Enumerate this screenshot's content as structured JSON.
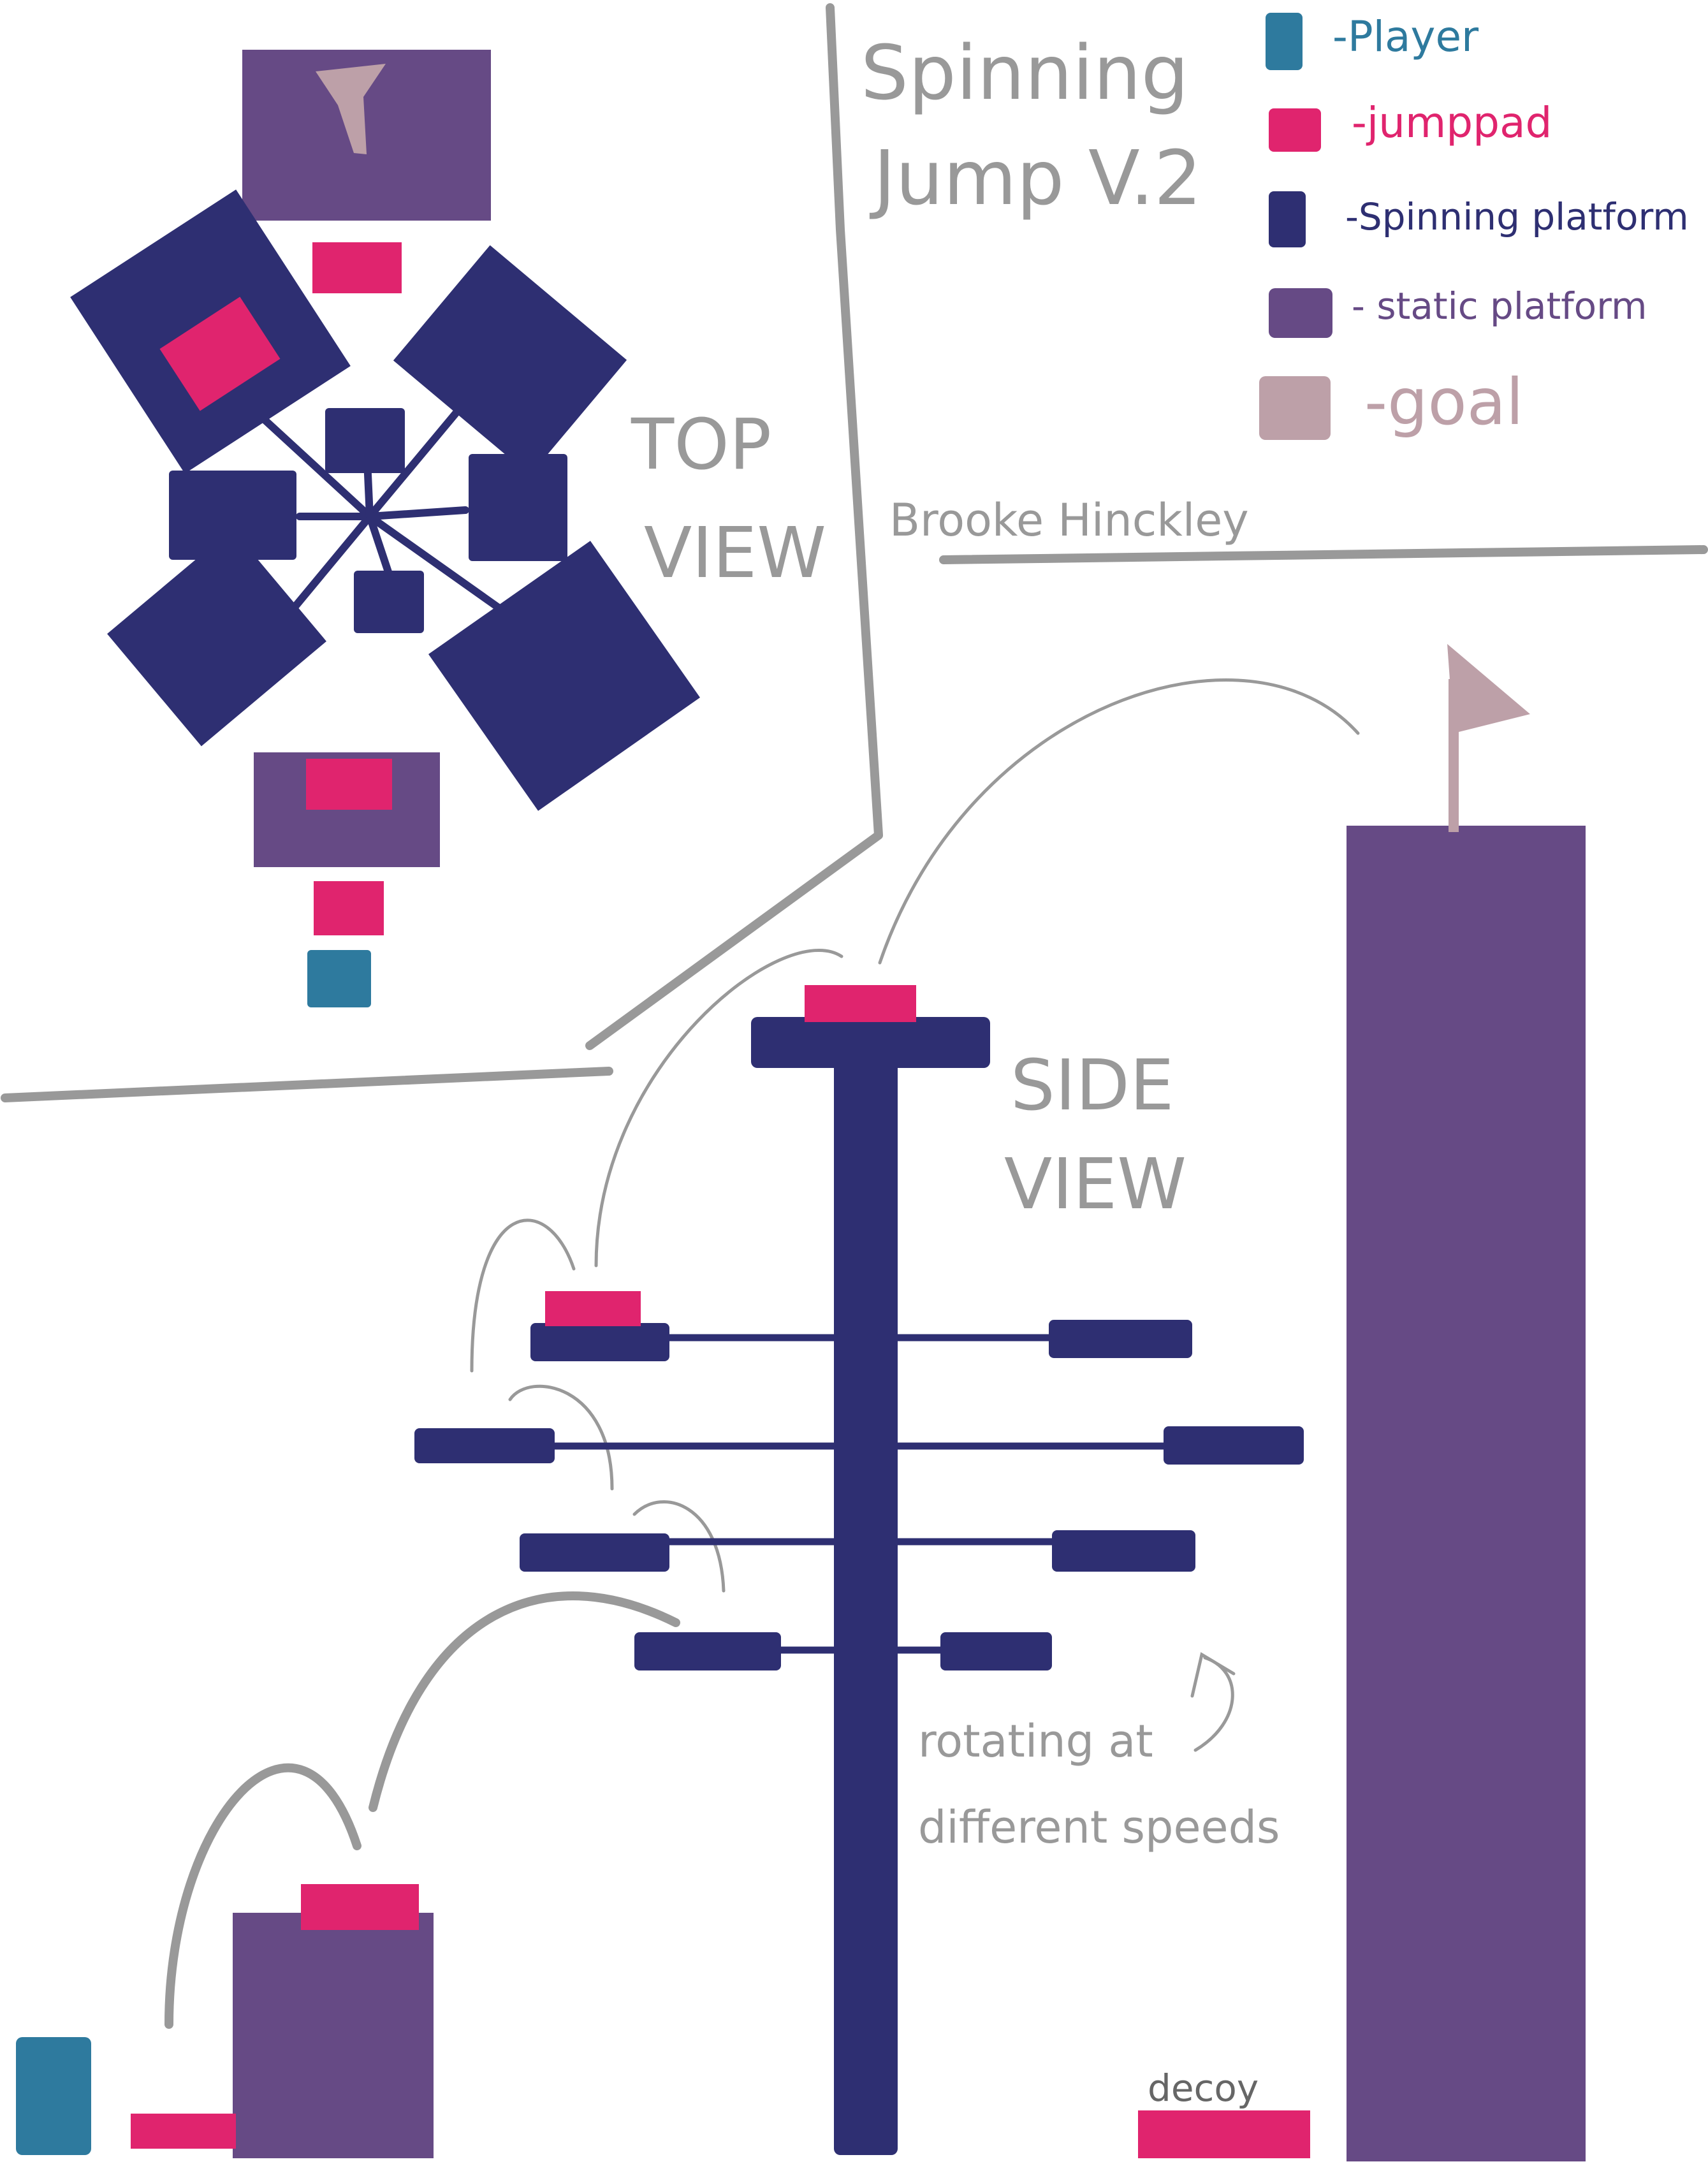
{
  "title": {
    "line1": "Spinning",
    "line2": "Jump V.2"
  },
  "author": "Brooke Hinckley",
  "legend": {
    "items": [
      {
        "label": "-Player",
        "color": "#2e7a9e"
      },
      {
        "label": "-jumppad",
        "color": "#e0246e"
      },
      {
        "label": "-Spinning platform",
        "color": "#2e2f72"
      },
      {
        "label": "- static platform",
        "color": "#664a85"
      },
      {
        "label": "-goal",
        "color": "#bda0a8"
      }
    ]
  },
  "views": {
    "top_line1": "TOP",
    "top_line2": "VIEW",
    "side_line1": "SIDE",
    "side_line2": "VIEW"
  },
  "notes": {
    "rotating_line1": "rotating at",
    "rotating_line2": "different speeds",
    "decoy": "decoy"
  },
  "colors": {
    "player": "#2e7a9e",
    "jumppad": "#e0246e",
    "spinning": "#2e2f72",
    "static": "#664a85",
    "goal": "#bda0a8",
    "lines": "#999999"
  }
}
